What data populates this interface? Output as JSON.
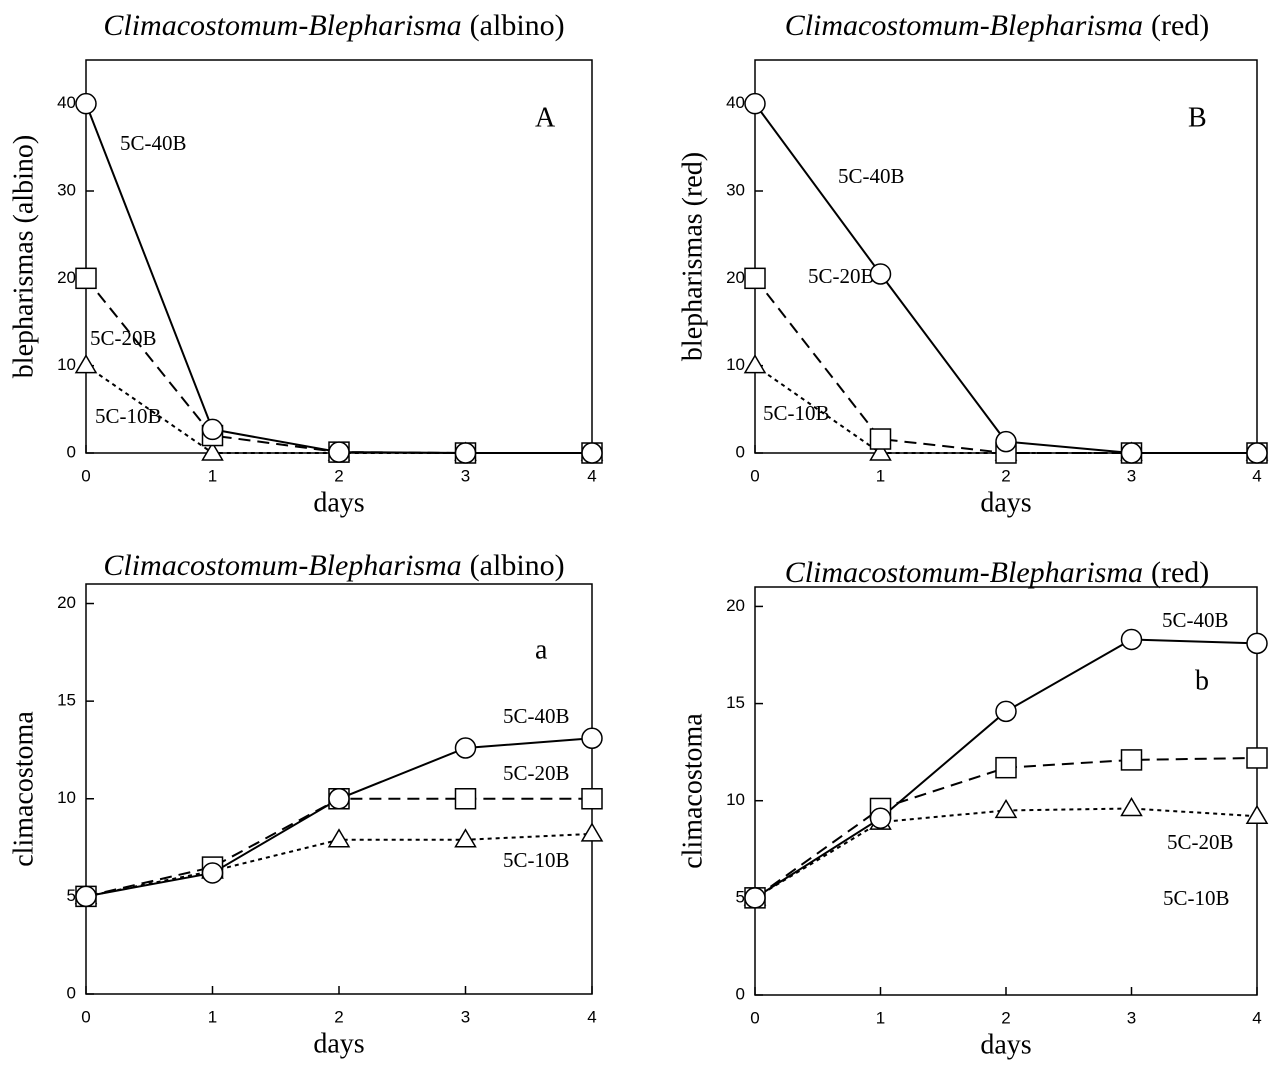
{
  "chart_data": [
    {
      "type": "line",
      "title": [
        "Climacostomum-Blepharisma",
        "(albino)"
      ],
      "panel_label": "A",
      "x_label": "days",
      "y_label": "blepharismas (albino)",
      "x": [
        0,
        1,
        2,
        3,
        4
      ],
      "xlim": [
        0,
        4
      ],
      "xticks": [
        0,
        1,
        2,
        3,
        4
      ],
      "ylim": [
        0,
        45
      ],
      "yticks": [
        0,
        10,
        20,
        30,
        40
      ],
      "series": [
        {
          "name": "5C-40B",
          "color": "#000000",
          "marker": "circle",
          "dash": "solid",
          "values": [
            40,
            2.7,
            0.1,
            0,
            0
          ]
        },
        {
          "name": "5C-20B",
          "color": "#000000",
          "marker": "square",
          "dash": "dashed",
          "values": [
            20,
            2,
            0.1,
            0,
            0
          ]
        },
        {
          "name": "5C-10B",
          "color": "#000000",
          "marker": "triangle",
          "dash": "dotted",
          "values": [
            10,
            0,
            0,
            0,
            0
          ]
        }
      ]
    },
    {
      "type": "line",
      "title": [
        "Climacostomum-Blepharisma",
        "(red)"
      ],
      "panel_label": "B",
      "x_label": "days",
      "y_label": "blepharismas (red)",
      "x": [
        0,
        1,
        2,
        3,
        4
      ],
      "xlim": [
        0,
        4
      ],
      "xticks": [
        0,
        1,
        2,
        3,
        4
      ],
      "ylim": [
        0,
        45
      ],
      "yticks": [
        0,
        10,
        20,
        30,
        40
      ],
      "series": [
        {
          "name": "5C-40B",
          "color": "#000000",
          "marker": "circle",
          "dash": "solid",
          "values": [
            40,
            20.5,
            1.3,
            0,
            0
          ]
        },
        {
          "name": "5C-20B",
          "color": "#000000",
          "marker": "square",
          "dash": "dashed",
          "values": [
            20,
            1.6,
            0,
            0,
            0
          ]
        },
        {
          "name": "5C-10B",
          "color": "#000000",
          "marker": "triangle",
          "dash": "dotted",
          "values": [
            10,
            0,
            0,
            0,
            0
          ]
        }
      ]
    },
    {
      "type": "line",
      "title": [
        "Climacostomum-Blepharisma",
        "(albino)"
      ],
      "panel_label": "a",
      "x_label": "days",
      "y_label": "climacostoma",
      "x": [
        0,
        1,
        2,
        3,
        4
      ],
      "xlim": [
        0,
        4
      ],
      "xticks": [
        0,
        1,
        2,
        3,
        4
      ],
      "ylim": [
        0,
        21
      ],
      "yticks": [
        0,
        5,
        10,
        15,
        20
      ],
      "series": [
        {
          "name": "5C-40B",
          "color": "#000000",
          "marker": "circle",
          "dash": "solid",
          "values": [
            5,
            6.2,
            10,
            12.6,
            13.1
          ]
        },
        {
          "name": "5C-20B",
          "color": "#000000",
          "marker": "square",
          "dash": "dashed",
          "values": [
            5,
            6.5,
            10,
            10,
            10
          ]
        },
        {
          "name": "5C-10B",
          "color": "#000000",
          "marker": "triangle",
          "dash": "dotted",
          "values": [
            5,
            6.3,
            7.9,
            7.9,
            8.2
          ]
        }
      ]
    },
    {
      "type": "line",
      "title": [
        "Climacostomum-Blepharisma",
        "(red)"
      ],
      "panel_label": "b",
      "x_label": "days",
      "y_label": "climacostoma",
      "x": [
        0,
        1,
        2,
        3,
        4
      ],
      "xlim": [
        0,
        4
      ],
      "xticks": [
        0,
        1,
        2,
        3,
        4
      ],
      "ylim": [
        0,
        21
      ],
      "yticks": [
        0,
        5,
        10,
        15,
        20
      ],
      "series": [
        {
          "name": "5C-40B",
          "color": "#000000",
          "marker": "circle",
          "dash": "solid",
          "values": [
            5,
            9.1,
            14.6,
            18.3,
            18.1
          ]
        },
        {
          "name": "5C-20B",
          "color": "#000000",
          "marker": "square",
          "dash": "dashed",
          "values": [
            5,
            9.6,
            11.7,
            12.1,
            12.2
          ]
        },
        {
          "name": "5C-10B",
          "color": "#000000",
          "marker": "triangle",
          "dash": "dotted",
          "values": [
            5,
            8.9,
            9.5,
            9.6,
            9.2
          ]
        }
      ]
    }
  ]
}
